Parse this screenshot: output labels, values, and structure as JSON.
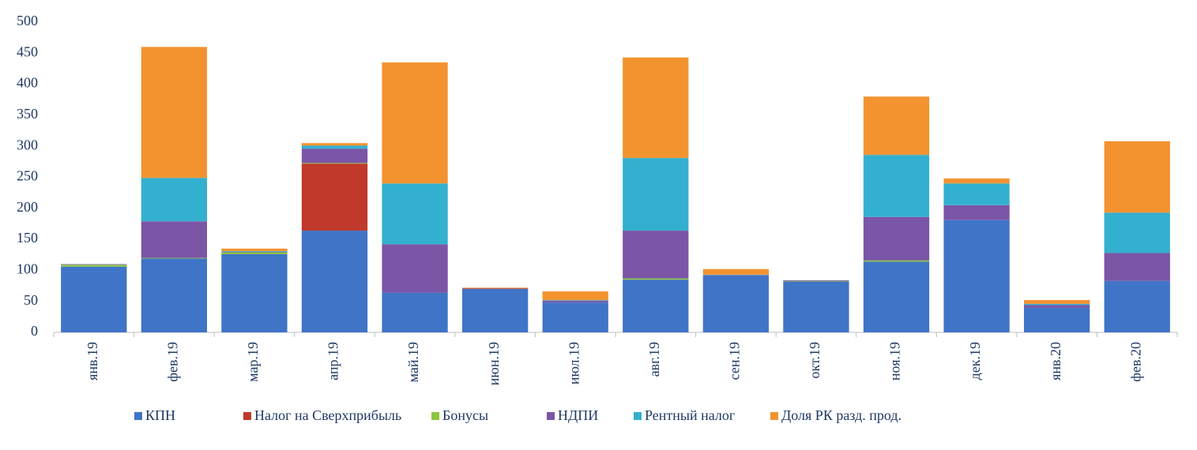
{
  "chart_data": {
    "type": "stacked_bar",
    "categories": [
      "янв.19",
      "фев.19",
      "мар.19",
      "апр.19",
      "май.19",
      "июн.19",
      "июл.19",
      "авг.19",
      "сен.19",
      "окт.19",
      "ноя.19",
      "дек.19",
      "янв.20",
      "фев.20"
    ],
    "series": [
      {
        "name": "КПН",
        "color": "#3f74c6",
        "values": [
          106,
          119,
          126,
          164,
          64,
          70,
          48,
          85,
          91,
          82,
          114,
          181,
          40,
          83
        ]
      },
      {
        "name": "Налог на Сверхприбыль",
        "color": "#c0392b",
        "values": [
          0,
          0,
          0,
          108,
          0,
          1,
          0,
          0,
          0,
          0,
          0,
          0,
          0,
          0
        ]
      },
      {
        "name": "Бонусы",
        "color": "#8cc63f",
        "values": [
          3,
          1,
          3,
          1,
          0,
          0,
          0,
          2,
          0,
          1,
          2,
          0,
          0,
          0
        ]
      },
      {
        "name": "НДПИ",
        "color": "#7b55a6",
        "values": [
          1,
          59,
          1,
          23,
          78,
          0,
          3,
          77,
          1,
          1,
          70,
          24,
          4,
          45
        ]
      },
      {
        "name": "Рентный налог",
        "color": "#33b0cf",
        "values": [
          0,
          70,
          1,
          5,
          98,
          0,
          1,
          117,
          1,
          0,
          100,
          35,
          2,
          65
        ]
      },
      {
        "name": "Доля РК разд. прод.",
        "color": "#f29330",
        "values": [
          0,
          211,
          4,
          4,
          195,
          1,
          14,
          162,
          9,
          0,
          94,
          8,
          6,
          115
        ]
      }
    ],
    "ylim": [
      0,
      500
    ],
    "yticks": [
      0,
      50,
      100,
      150,
      200,
      250,
      300,
      350,
      400,
      450,
      500
    ],
    "legend": "bottom"
  }
}
